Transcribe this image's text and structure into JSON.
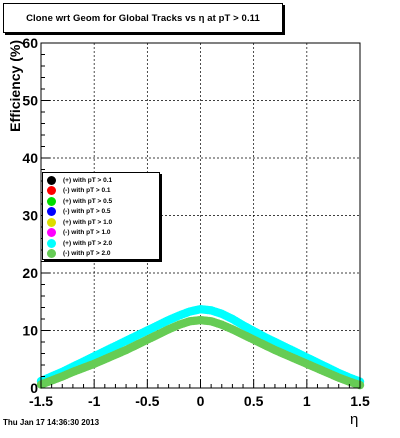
{
  "chart_data": {
    "type": "scatter",
    "title": "Clone wrt Geom for Global Tracks vs η at pT > 0.11",
    "xlabel": "η",
    "ylabel": "Efficiency (%)",
    "xlim": [
      -1.5,
      1.5
    ],
    "ylim": [
      0,
      60
    ],
    "x_ticks": [
      "-1.5",
      "-1",
      "-0.5",
      "0",
      "0.5",
      "1",
      "1.5"
    ],
    "y_ticks": [
      "0",
      "10",
      "20",
      "30",
      "40",
      "50",
      "60"
    ],
    "grid": true,
    "legend_position": "middle-left",
    "legend": [
      {
        "label": "(+) with pT > 0.1",
        "color": "#000000"
      },
      {
        "label": "(-) with pT > 0.1",
        "color": "#ff0000"
      },
      {
        "label": "(+) with pT > 0.5",
        "color": "#00dd00"
      },
      {
        "label": "(-) with pT > 0.5",
        "color": "#0000ff"
      },
      {
        "label": "(+) with pT > 1.0",
        "color": "#dddd00"
      },
      {
        "label": "(-) with pT > 1.0",
        "color": "#ff00ff"
      },
      {
        "label": "(+) with pT > 2.0",
        "color": "#00ffff"
      },
      {
        "label": "(-) with pT > 2.0",
        "color": "#66cc55"
      }
    ],
    "series": [
      {
        "color": "#00ffff",
        "x": [
          -1.5,
          -1.4,
          -1.3,
          -1.2,
          -1.1,
          -1.0,
          -0.9,
          -0.8,
          -0.7,
          -0.6,
          -0.5,
          -0.4,
          -0.3,
          -0.2,
          -0.1,
          0.0,
          0.1,
          0.2,
          0.3,
          0.4,
          0.5,
          0.6,
          0.7,
          0.8,
          0.9,
          1.0,
          1.1,
          1.2,
          1.3,
          1.4,
          1.5
        ],
        "y": [
          1.2,
          2.0,
          2.8,
          3.7,
          4.6,
          5.5,
          6.4,
          7.3,
          8.2,
          9.1,
          10.0,
          10.9,
          11.8,
          12.6,
          13.3,
          13.7,
          13.5,
          12.9,
          12.0,
          10.9,
          9.9,
          8.9,
          8.0,
          7.1,
          6.2,
          5.3,
          4.4,
          3.5,
          2.6,
          1.8,
          1.1
        ]
      },
      {
        "color": "#66cc55",
        "x": [
          -1.5,
          -1.4,
          -1.3,
          -1.2,
          -1.1,
          -1.0,
          -0.9,
          -0.8,
          -0.7,
          -0.6,
          -0.5,
          -0.4,
          -0.3,
          -0.2,
          -0.1,
          0.0,
          0.1,
          0.2,
          0.3,
          0.4,
          0.5,
          0.6,
          0.7,
          0.8,
          0.9,
          1.0,
          1.1,
          1.2,
          1.3,
          1.4,
          1.5
        ],
        "y": [
          0.6,
          1.3,
          2.0,
          2.8,
          3.5,
          4.2,
          5.0,
          5.8,
          6.6,
          7.5,
          8.4,
          9.3,
          10.2,
          11.0,
          11.6,
          11.8,
          11.6,
          11.0,
          10.2,
          9.3,
          8.4,
          7.5,
          6.6,
          5.8,
          5.0,
          4.2,
          3.4,
          2.6,
          1.8,
          1.1,
          0.5
        ]
      }
    ]
  },
  "timestamp": "Thu Jan 17 14:36:30 2013"
}
